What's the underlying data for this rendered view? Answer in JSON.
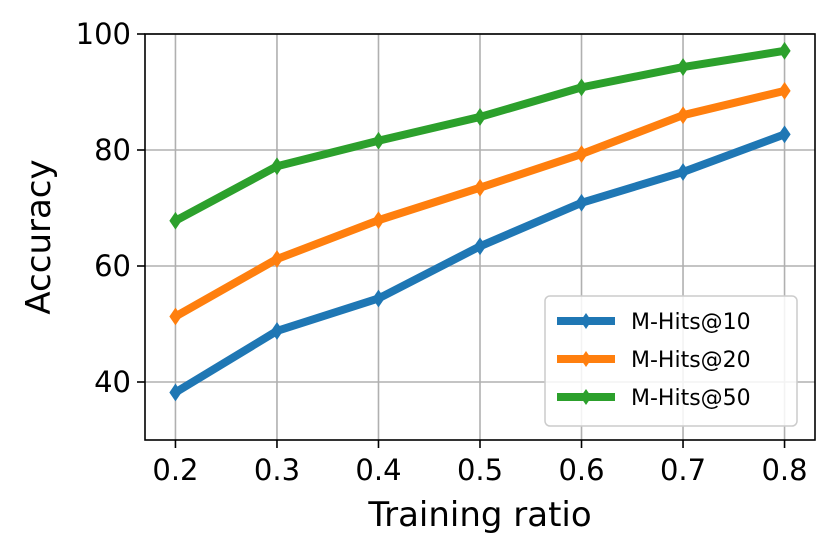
{
  "chart_data": {
    "type": "line",
    "title": "",
    "xlabel": "Training ratio",
    "ylabel": "Accuracy",
    "x": [
      0.2,
      0.3,
      0.4,
      0.5,
      0.6,
      0.7,
      0.8
    ],
    "xticks": [
      "0.2",
      "0.3",
      "0.4",
      "0.5",
      "0.6",
      "0.7",
      "0.8"
    ],
    "yticks": [
      40,
      60,
      80,
      100
    ],
    "xlim": [
      0.17,
      0.83
    ],
    "ylim": [
      30,
      100
    ],
    "grid": true,
    "legend_position": "lower-right",
    "series": [
      {
        "name": "M-Hits@10",
        "color": "#1f77b4",
        "values": [
          38.2,
          48.8,
          54.4,
          63.4,
          70.9,
          76.2,
          82.7
        ]
      },
      {
        "name": "M-Hits@20",
        "color": "#ff7f0e",
        "values": [
          51.3,
          61.2,
          67.9,
          73.5,
          79.3,
          86.0,
          90.2
        ]
      },
      {
        "name": "M-Hits@50",
        "color": "#2ca02c",
        "values": [
          67.8,
          77.2,
          81.6,
          85.7,
          90.8,
          94.3,
          97.1
        ]
      }
    ]
  }
}
